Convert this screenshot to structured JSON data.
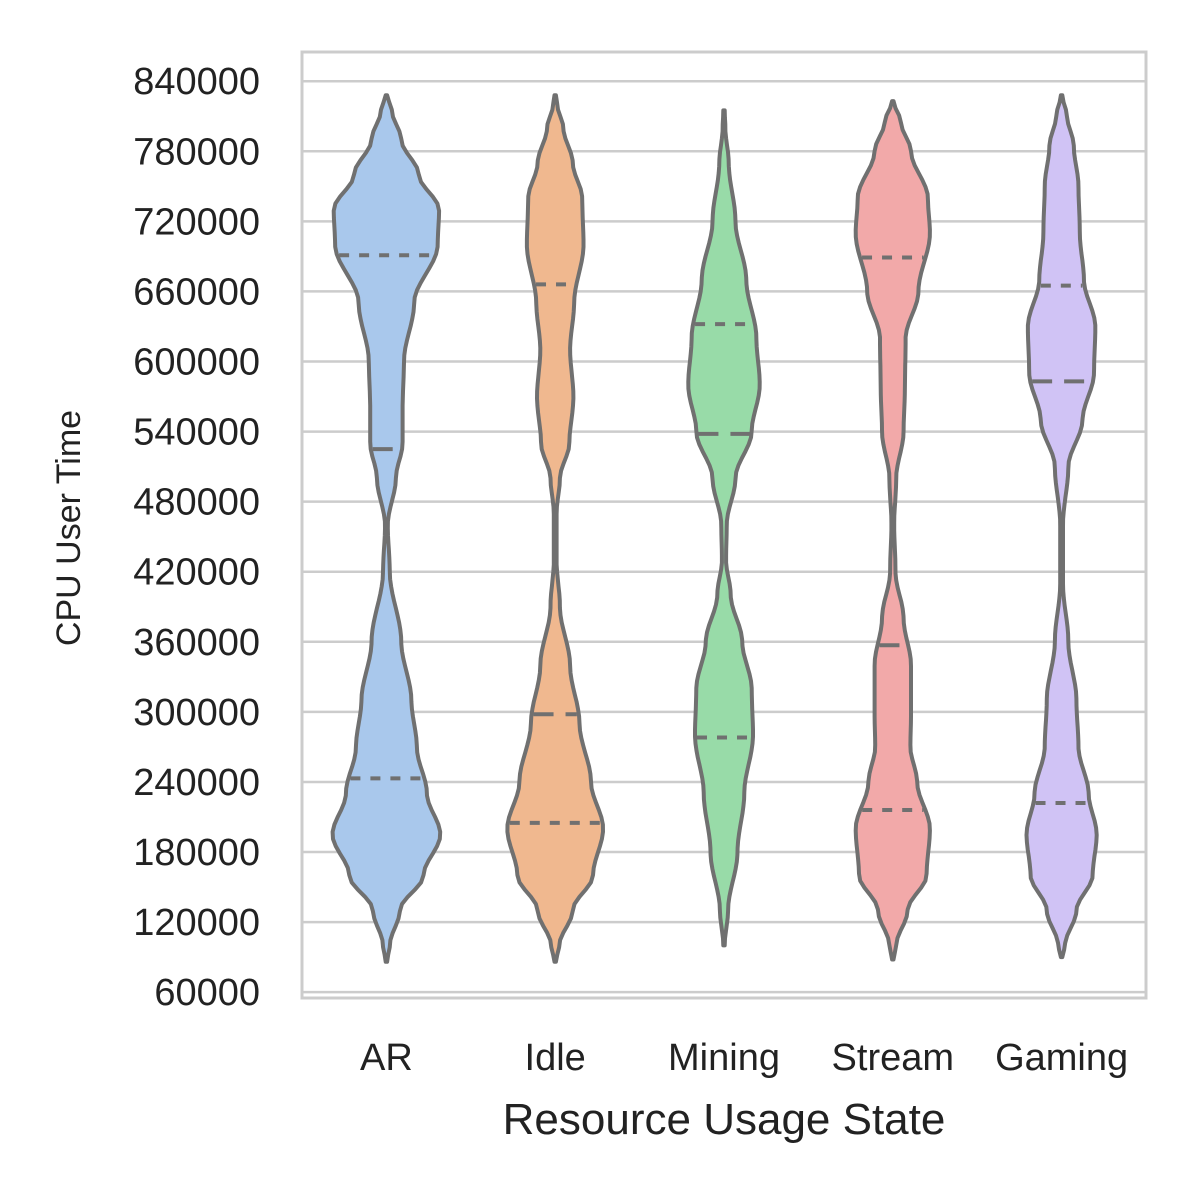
{
  "chart_data": {
    "type": "violin",
    "title": "",
    "xlabel": "Resource Usage State",
    "ylabel": "CPU User Time",
    "categories": [
      "AR",
      "Idle",
      "Mining",
      "Stream",
      "Gaming"
    ],
    "colors": [
      "#a9c8ec",
      "#f0b88f",
      "#98dba8",
      "#f2a9a9",
      "#d0c3f5"
    ],
    "outline_color": "#707070",
    "ylim": [
      55000,
      865000
    ],
    "yticks": [
      60000,
      120000,
      180000,
      240000,
      300000,
      360000,
      420000,
      480000,
      540000,
      600000,
      660000,
      720000,
      780000,
      840000
    ],
    "ytick_labels": [
      "60000",
      "120000",
      "180000",
      "240000",
      "300000",
      "360000",
      "420000",
      "480000",
      "540000",
      "600000",
      "660000",
      "720000",
      "780000",
      "840000"
    ],
    "grid": true,
    "inner": "quartile",
    "violins": [
      {
        "category": "AR",
        "min": 86000,
        "max": 828000,
        "quartiles": [
          243000,
          525000,
          691000
        ],
        "density_profile": [
          [
            86000,
            0.01
          ],
          [
            100000,
            0.05
          ],
          [
            130000,
            0.2
          ],
          [
            160000,
            0.55
          ],
          [
            195000,
            0.8
          ],
          [
            230000,
            0.6
          ],
          [
            270000,
            0.45
          ],
          [
            310000,
            0.37
          ],
          [
            360000,
            0.22
          ],
          [
            420000,
            0.05
          ],
          [
            460000,
            0.02
          ],
          [
            500000,
            0.14
          ],
          [
            530000,
            0.24
          ],
          [
            560000,
            0.24
          ],
          [
            600000,
            0.26
          ],
          [
            650000,
            0.41
          ],
          [
            700000,
            0.76
          ],
          [
            730000,
            0.78
          ],
          [
            760000,
            0.48
          ],
          [
            790000,
            0.22
          ],
          [
            815000,
            0.08
          ],
          [
            828000,
            0.01
          ]
        ]
      },
      {
        "category": "Idle",
        "min": 86000,
        "max": 828000,
        "quartiles": [
          205000,
          298000,
          666000
        ],
        "density_profile": [
          [
            86000,
            0.01
          ],
          [
            100000,
            0.06
          ],
          [
            130000,
            0.26
          ],
          [
            160000,
            0.56
          ],
          [
            200000,
            0.71
          ],
          [
            240000,
            0.53
          ],
          [
            290000,
            0.36
          ],
          [
            340000,
            0.22
          ],
          [
            390000,
            0.07
          ],
          [
            430000,
            0.02
          ],
          [
            470000,
            0.02
          ],
          [
            500000,
            0.07
          ],
          [
            530000,
            0.21
          ],
          [
            570000,
            0.27
          ],
          [
            610000,
            0.22
          ],
          [
            650000,
            0.28
          ],
          [
            700000,
            0.42
          ],
          [
            740000,
            0.4
          ],
          [
            770000,
            0.26
          ],
          [
            800000,
            0.12
          ],
          [
            820000,
            0.03
          ],
          [
            828000,
            0.01
          ]
        ]
      },
      {
        "category": "Mining",
        "min": 100000,
        "max": 815000,
        "quartiles": [
          278000,
          538000,
          632000
        ],
        "density_profile": [
          [
            100000,
            0.01
          ],
          [
            130000,
            0.06
          ],
          [
            180000,
            0.2
          ],
          [
            230000,
            0.3
          ],
          [
            280000,
            0.43
          ],
          [
            320000,
            0.41
          ],
          [
            360000,
            0.27
          ],
          [
            400000,
            0.1
          ],
          [
            430000,
            0.03
          ],
          [
            460000,
            0.04
          ],
          [
            500000,
            0.17
          ],
          [
            540000,
            0.41
          ],
          [
            580000,
            0.53
          ],
          [
            620000,
            0.48
          ],
          [
            670000,
            0.33
          ],
          [
            720000,
            0.17
          ],
          [
            770000,
            0.07
          ],
          [
            800000,
            0.02
          ],
          [
            815000,
            0.01
          ]
        ]
      },
      {
        "category": "Stream",
        "min": 88000,
        "max": 823000,
        "quartiles": [
          216000,
          357000,
          689000
        ],
        "density_profile": [
          [
            88000,
            0.01
          ],
          [
            100000,
            0.05
          ],
          [
            130000,
            0.22
          ],
          [
            160000,
            0.5
          ],
          [
            200000,
            0.55
          ],
          [
            240000,
            0.36
          ],
          [
            270000,
            0.26
          ],
          [
            300000,
            0.27
          ],
          [
            340000,
            0.27
          ],
          [
            380000,
            0.16
          ],
          [
            420000,
            0.04
          ],
          [
            460000,
            0.02
          ],
          [
            500000,
            0.05
          ],
          [
            540000,
            0.16
          ],
          [
            580000,
            0.18
          ],
          [
            620000,
            0.19
          ],
          [
            660000,
            0.38
          ],
          [
            710000,
            0.55
          ],
          [
            740000,
            0.52
          ],
          [
            780000,
            0.27
          ],
          [
            805000,
            0.12
          ],
          [
            823000,
            0.01
          ]
        ]
      },
      {
        "category": "Gaming",
        "min": 90000,
        "max": 828000,
        "quartiles": [
          222000,
          583000,
          665000
        ],
        "density_profile": [
          [
            90000,
            0.01
          ],
          [
            100000,
            0.05
          ],
          [
            130000,
            0.22
          ],
          [
            160000,
            0.46
          ],
          [
            195000,
            0.52
          ],
          [
            230000,
            0.4
          ],
          [
            270000,
            0.25
          ],
          [
            310000,
            0.22
          ],
          [
            360000,
            0.1
          ],
          [
            410000,
            0.02
          ],
          [
            460000,
            0.02
          ],
          [
            510000,
            0.1
          ],
          [
            550000,
            0.31
          ],
          [
            590000,
            0.48
          ],
          [
            630000,
            0.5
          ],
          [
            670000,
            0.33
          ],
          [
            710000,
            0.27
          ],
          [
            750000,
            0.25
          ],
          [
            785000,
            0.18
          ],
          [
            810000,
            0.08
          ],
          [
            828000,
            0.01
          ]
        ]
      }
    ]
  }
}
